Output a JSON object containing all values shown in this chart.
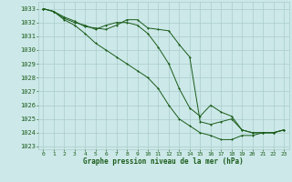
{
  "bg_color": "#cce8e8",
  "grid_color": "#aacccc",
  "line_color": "#1a5c1a",
  "xlabel": "Graphe pression niveau de la mer (hPa)",
  "xlim": [
    -0.5,
    23.5
  ],
  "ylim": [
    1022.8,
    1033.5
  ],
  "yticks": [
    1023,
    1024,
    1025,
    1026,
    1027,
    1028,
    1029,
    1030,
    1031,
    1032,
    1033
  ],
  "xticks": [
    0,
    1,
    2,
    3,
    4,
    5,
    6,
    7,
    8,
    9,
    10,
    11,
    12,
    13,
    14,
    15,
    16,
    17,
    18,
    19,
    20,
    21,
    22,
    23
  ],
  "line1_x": [
    0,
    1,
    2,
    3,
    4,
    5,
    6,
    7,
    8,
    9,
    10,
    11,
    12,
    13,
    14,
    15,
    16,
    17,
    18,
    19,
    20,
    21,
    22,
    23
  ],
  "line1_y": [
    1033.0,
    1032.8,
    1032.4,
    1032.1,
    1031.7,
    1031.6,
    1031.5,
    1031.8,
    1032.2,
    1032.2,
    1031.6,
    1031.5,
    1031.4,
    1030.4,
    1029.5,
    1024.8,
    1024.6,
    1024.8,
    1025.0,
    1024.2,
    1024.0,
    1024.0,
    1024.0,
    1024.2
  ],
  "line2_x": [
    0,
    1,
    2,
    3,
    4,
    5,
    6,
    7,
    8,
    9,
    10,
    11,
    12,
    13,
    14,
    15,
    16,
    17,
    18,
    19,
    20,
    21,
    22,
    23
  ],
  "line2_y": [
    1033.0,
    1032.8,
    1032.3,
    1032.0,
    1031.8,
    1031.5,
    1031.8,
    1032.0,
    1032.0,
    1031.8,
    1031.2,
    1030.2,
    1029.0,
    1027.2,
    1025.8,
    1025.2,
    1026.0,
    1025.5,
    1025.2,
    1024.2,
    1024.0,
    1024.0,
    1024.0,
    1024.2
  ],
  "line3_x": [
    0,
    1,
    2,
    3,
    4,
    5,
    6,
    7,
    8,
    9,
    10,
    11,
    12,
    13,
    14,
    15,
    16,
    17,
    18,
    19,
    20,
    21,
    22,
    23
  ],
  "line3_y": [
    1033.0,
    1032.8,
    1032.2,
    1031.8,
    1031.2,
    1030.5,
    1030.0,
    1029.5,
    1029.0,
    1028.5,
    1028.0,
    1027.2,
    1026.0,
    1025.0,
    1024.5,
    1024.0,
    1023.8,
    1023.5,
    1023.5,
    1023.8,
    1023.8,
    1024.0,
    1024.0,
    1024.2
  ]
}
